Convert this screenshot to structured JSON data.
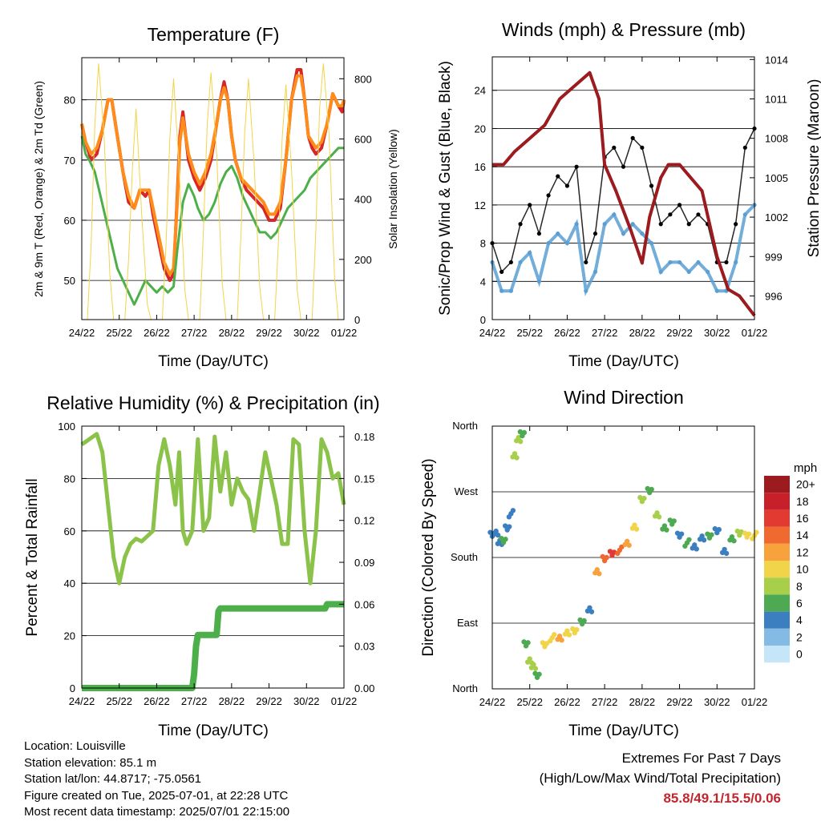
{
  "x_tick_labels": [
    "24/22",
    "25/22",
    "26/22",
    "27/22",
    "28/22",
    "29/22",
    "30/22",
    "01/22"
  ],
  "x_axis_label": "Time (Day/UTC)",
  "panels": {
    "temperature": {
      "title": "Temperature (F)",
      "ylabel_left": "2m & 9m T (Red, Orange) & 2m Td (Green)",
      "ylabel_right": "Solar Insolation (Yellow)"
    },
    "winds": {
      "title": "Winds (mph) & Pressure (mb)",
      "ylabel_left": "Sonic/Prop Wind & Gust (Blue, Black)",
      "ylabel_right": "Station Pressure (Maroon)"
    },
    "humidity": {
      "title": "Relative Humidity (%) & Precipitation (in)",
      "ylabel_left": "Percent & Total Rainfall"
    },
    "direction": {
      "title": "Wind Direction",
      "ylabel_left": "Direction (Colored By Speed)",
      "colorbar_title": "mph",
      "colorbar_labels": [
        "20+",
        "18",
        "16",
        "14",
        "12",
        "10",
        "8",
        "6",
        "4",
        "2",
        "0"
      ],
      "colorbar_colors": [
        "#9b1b1e",
        "#c8202a",
        "#e23a30",
        "#f06a30",
        "#f8a23e",
        "#f2d44a",
        "#a8cf4a",
        "#4daa52",
        "#3c7fc0",
        "#84bbe4",
        "#c5e6f8"
      ]
    }
  },
  "chart_data": [
    {
      "type": "line",
      "title": "Temperature (F)",
      "xlabel": "Time (Day/UTC)",
      "ylabel": "2m & 9m T (Red, Orange) & 2m Td (Green)",
      "ylabel_right": "Solar Insolation (Yellow)",
      "x_range": [
        0,
        7
      ],
      "ylim": [
        43.5,
        87
      ],
      "y_ticks": [
        50,
        60,
        70,
        80
      ],
      "y2lim": [
        0,
        870
      ],
      "y2_ticks": [
        0,
        200,
        400,
        600,
        800
      ],
      "series": [
        {
          "color": "#d62728",
          "x": [
            0,
            0.1,
            0.25,
            0.4,
            0.55,
            0.7,
            0.8,
            0.9,
            1.0,
            1.1,
            1.25,
            1.4,
            1.55,
            1.7,
            1.8,
            1.9,
            2.0,
            2.1,
            2.2,
            2.35,
            2.45,
            2.55,
            2.62,
            2.7,
            2.85,
            3.0,
            3.15,
            3.3,
            3.45,
            3.6,
            3.7,
            3.8,
            3.9,
            4.0,
            4.1,
            4.25,
            4.4,
            4.55,
            4.7,
            4.85,
            5.0,
            5.15,
            5.3,
            5.45,
            5.6,
            5.75,
            5.85,
            5.95,
            6.05,
            6.15,
            6.25,
            6.4,
            6.55,
            6.7,
            6.85,
            6.95,
            7.0
          ],
          "values": [
            76,
            73,
            70,
            71,
            75,
            80,
            80,
            76,
            72,
            68,
            63,
            62,
            65,
            64,
            65,
            61,
            58,
            55,
            52,
            50,
            51,
            64,
            74,
            78,
            70,
            67,
            65,
            67,
            70,
            76,
            80,
            83,
            80,
            74,
            70,
            67,
            65,
            64,
            63,
            62,
            60,
            60,
            62,
            70,
            80,
            85,
            85,
            80,
            74,
            72,
            71,
            72,
            76,
            81,
            79,
            78,
            80
          ]
        },
        {
          "color": "#ff8c1a",
          "x": [
            0,
            0.1,
            0.25,
            0.4,
            0.55,
            0.7,
            0.8,
            0.9,
            1.0,
            1.1,
            1.25,
            1.4,
            1.55,
            1.7,
            1.8,
            1.9,
            2.0,
            2.1,
            2.2,
            2.35,
            2.45,
            2.55,
            2.62,
            2.7,
            2.85,
            3.0,
            3.15,
            3.3,
            3.45,
            3.6,
            3.7,
            3.8,
            3.9,
            4.0,
            4.1,
            4.25,
            4.4,
            4.55,
            4.7,
            4.85,
            5.0,
            5.15,
            5.3,
            5.45,
            5.6,
            5.75,
            5.85,
            5.95,
            6.05,
            6.15,
            6.25,
            6.4,
            6.55,
            6.7,
            6.85,
            6.95,
            7.0
          ],
          "values": [
            76,
            73,
            71,
            72,
            75,
            80,
            80,
            76,
            72,
            68,
            64,
            62,
            65,
            65,
            65,
            62,
            59,
            56,
            53,
            51,
            52,
            63,
            73,
            77,
            71,
            68,
            66,
            68,
            71,
            76,
            80,
            82,
            80,
            74,
            70,
            67,
            66,
            65,
            64,
            63,
            61,
            61,
            63,
            70,
            80,
            84,
            84,
            80,
            74,
            73,
            72,
            73,
            76,
            81,
            79,
            79,
            80
          ]
        },
        {
          "color": "#4daf4a",
          "x": [
            0,
            0.1,
            0.2,
            0.35,
            0.5,
            0.65,
            0.8,
            0.95,
            1.1,
            1.25,
            1.4,
            1.55,
            1.7,
            1.85,
            2.0,
            2.15,
            2.3,
            2.45,
            2.55,
            2.7,
            2.85,
            3.0,
            3.1,
            3.25,
            3.4,
            3.55,
            3.7,
            3.85,
            4.0,
            4.15,
            4.3,
            4.45,
            4.6,
            4.75,
            4.9,
            5.05,
            5.2,
            5.35,
            5.5,
            5.65,
            5.8,
            5.95,
            6.1,
            6.25,
            6.4,
            6.55,
            6.7,
            6.85,
            7.0
          ],
          "values": [
            74,
            71,
            70,
            68,
            64,
            60,
            56,
            52,
            50,
            48,
            46,
            48,
            50,
            49,
            48,
            49,
            48,
            49,
            55,
            63,
            66,
            64,
            62,
            60,
            61,
            63,
            66,
            68,
            69,
            67,
            64,
            62,
            60,
            58,
            58,
            57,
            58,
            60,
            62,
            63,
            64,
            65,
            67,
            68,
            69,
            70,
            71,
            72,
            72
          ]
        },
        {
          "color": "#f2d44a",
          "x": [
            0,
            0.15,
            0.25,
            0.35,
            0.45,
            0.6,
            0.75,
            0.85,
            1.0,
            1.15,
            1.25,
            1.35,
            1.45,
            1.6,
            1.75,
            1.85,
            2.0,
            2.15,
            2.25,
            2.35,
            2.45,
            2.6,
            2.75,
            2.85,
            3.0,
            3.15,
            3.25,
            3.35,
            3.45,
            3.6,
            3.75,
            3.85,
            4.0,
            4.15,
            4.25,
            4.35,
            4.45,
            4.6,
            4.75,
            4.85,
            5.0,
            5.15,
            5.25,
            5.35,
            5.45,
            5.6,
            5.75,
            5.85,
            6.0,
            6.15,
            6.25,
            6.35,
            6.45,
            6.6,
            6.75,
            6.85,
            7.0
          ],
          "values": [
            0,
            0,
            250,
            650,
            850,
            600,
            150,
            0,
            0,
            0,
            200,
            500,
            700,
            350,
            50,
            0,
            0,
            0,
            250,
            600,
            800,
            500,
            100,
            0,
            0,
            0,
            300,
            650,
            820,
            550,
            120,
            0,
            0,
            0,
            280,
            620,
            800,
            520,
            110,
            0,
            0,
            0,
            260,
            600,
            780,
            500,
            100,
            0,
            0,
            0,
            300,
            700,
            850,
            620,
            140,
            0,
            0
          ],
          "axis": "right"
        }
      ]
    },
    {
      "type": "scatter",
      "title": "Winds (mph) & Pressure (mb)",
      "xlabel": "Time (Day/UTC)",
      "ylabel": "Sonic/Prop Wind & Gust (Blue, Black)",
      "ylabel_right": "Station Pressure (Maroon)",
      "x_range": [
        0,
        7
      ],
      "ylim": [
        0,
        27.5
      ],
      "y_ticks": [
        0,
        4,
        8,
        12,
        16,
        20,
        24
      ],
      "y2lim": [
        994.2,
        1014.2
      ],
      "y2_ticks": [
        996,
        999,
        1002,
        1005,
        1008,
        1011,
        1014
      ],
      "series": [
        {
          "name_color": "#5a9fd4",
          "x": [
            0,
            0.25,
            0.5,
            0.75,
            1.0,
            1.25,
            1.5,
            1.75,
            2.0,
            2.25,
            2.5,
            2.75,
            3.0,
            3.25,
            3.5,
            3.75,
            4.0,
            4.25,
            4.5,
            4.75,
            5.0,
            5.25,
            5.5,
            5.75,
            6.0,
            6.25,
            6.5,
            6.75,
            7.0
          ],
          "values": [
            6,
            3,
            3,
            6,
            7,
            4,
            8,
            9,
            8,
            10,
            3,
            5,
            10,
            11,
            9,
            10,
            9,
            8,
            5,
            6,
            6,
            5,
            6,
            5,
            3,
            3,
            6,
            11,
            12
          ]
        },
        {
          "name_color": "#000000",
          "x": [
            0,
            0.25,
            0.5,
            0.75,
            1.0,
            1.25,
            1.5,
            1.75,
            2.0,
            2.25,
            2.5,
            2.75,
            3.0,
            3.25,
            3.5,
            3.75,
            4.0,
            4.25,
            4.5,
            4.75,
            5.0,
            5.25,
            5.5,
            5.75,
            6.0,
            6.25,
            6.5,
            6.75,
            7.0
          ],
          "values": [
            8,
            5,
            6,
            10,
            12,
            9,
            13,
            15,
            14,
            16,
            6,
            9,
            17,
            18,
            16,
            19,
            18,
            14,
            10,
            11,
            12,
            10,
            11,
            10,
            6,
            6,
            10,
            18,
            20
          ]
        },
        {
          "name_color": "#9b1b1e",
          "axis": "right",
          "x": [
            0,
            0.3,
            0.6,
            1.0,
            1.4,
            1.8,
            2.2,
            2.6,
            2.85,
            3.0,
            3.3,
            3.7,
            4.0,
            4.2,
            4.5,
            4.7,
            5.0,
            5.3,
            5.6,
            6.0,
            6.3,
            6.6,
            7.0
          ],
          "values": [
            1006,
            1006,
            1007,
            1008,
            1009,
            1011,
            1012,
            1013,
            1011,
            1006,
            1004,
            1001,
            998.5,
            1002,
            1005,
            1006,
            1006,
            1005,
            1004,
            999,
            996.5,
            996,
            994.5
          ]
        }
      ]
    },
    {
      "type": "line",
      "title": "Relative Humidity (%) & Precipitation (in)",
      "xlabel": "Time (Day/UTC)",
      "ylabel": "Percent & Total Rainfall",
      "x_range": [
        0,
        7
      ],
      "ylim": [
        0,
        100
      ],
      "y_ticks": [
        0,
        20,
        40,
        60,
        80,
        100
      ],
      "y2lim": [
        0,
        0.1875
      ],
      "y2_ticks": [
        "0.00",
        "0.03",
        "0.06",
        "0.09",
        "0.12",
        "0.15",
        "0.18"
      ],
      "series": [
        {
          "color": "#8bc34a",
          "x": [
            0,
            0.2,
            0.4,
            0.55,
            0.7,
            0.85,
            1.0,
            1.15,
            1.3,
            1.45,
            1.6,
            1.75,
            1.9,
            2.05,
            2.2,
            2.35,
            2.5,
            2.6,
            2.7,
            2.8,
            2.95,
            3.1,
            3.25,
            3.4,
            3.55,
            3.7,
            3.85,
            4.0,
            4.15,
            4.3,
            4.45,
            4.6,
            4.75,
            4.9,
            5.05,
            5.2,
            5.35,
            5.5,
            5.65,
            5.8,
            5.95,
            6.1,
            6.25,
            6.4,
            6.55,
            6.7,
            6.85,
            7.0
          ],
          "values": [
            93,
            95,
            97,
            90,
            70,
            50,
            40,
            50,
            55,
            57,
            56,
            58,
            60,
            85,
            95,
            85,
            70,
            90,
            60,
            55,
            60,
            95,
            60,
            65,
            96,
            75,
            90,
            70,
            80,
            75,
            72,
            60,
            75,
            90,
            80,
            70,
            55,
            55,
            95,
            93,
            60,
            40,
            60,
            95,
            90,
            80,
            82,
            70
          ]
        },
        {
          "color": "#4daf4a",
          "axis": "right",
          "x": [
            0,
            1,
            2,
            2.95,
            3.0,
            3.05,
            3.1,
            3.6,
            3.65,
            3.7,
            6.5,
            6.55,
            7.0
          ],
          "values": [
            0,
            0,
            0,
            0,
            0.01,
            0.03,
            0.038,
            0.038,
            0.055,
            0.057,
            0.057,
            0.06,
            0.06
          ]
        }
      ]
    },
    {
      "type": "scatter",
      "title": "Wind Direction",
      "xlabel": "Time (Day/UTC)",
      "ylabel": "Direction (Colored By Speed)",
      "x_range": [
        0,
        7
      ],
      "ylim": [
        0,
        360
      ],
      "y_ticks": [
        "North",
        "East",
        "South",
        "West",
        "North"
      ],
      "series": [
        {
          "x": [
            0,
            0.1,
            0.2,
            0.3,
            0.4,
            0.5,
            0.6,
            0.7,
            0.8,
            0.9,
            1.0,
            1.1,
            1.2,
            1.4,
            1.6,
            1.8,
            2.0,
            2.2,
            2.4,
            2.6,
            2.8,
            3.0,
            3.2,
            3.4,
            3.6,
            3.8,
            4.0,
            4.2,
            4.4,
            4.6,
            4.8,
            5.0,
            5.2,
            5.4,
            5.6,
            5.8,
            6.0,
            6.2,
            6.4,
            6.6,
            6.8,
            7.0
          ],
          "values": [
            210,
            215,
            200,
            205,
            220,
            240,
            320,
            340,
            350,
            60,
            40,
            30,
            20,
            60,
            70,
            70,
            75,
            80,
            90,
            110,
            160,
            180,
            185,
            190,
            200,
            220,
            260,
            270,
            240,
            220,
            230,
            210,
            200,
            195,
            205,
            210,
            215,
            190,
            205,
            215,
            210,
            210
          ],
          "speeds": [
            4,
            3,
            4,
            5,
            3,
            4,
            8,
            7,
            6,
            6,
            8,
            7,
            5,
            9,
            10,
            11,
            10,
            9,
            6,
            4,
            12,
            14,
            16,
            13,
            12,
            10,
            8,
            6,
            7,
            6,
            5,
            4,
            6,
            3,
            4,
            5,
            4,
            3,
            6,
            8,
            9,
            10
          ]
        }
      ]
    }
  ],
  "footer": {
    "location": "Location: Louisville",
    "elevation": "Station elevation: 85.1 m",
    "latlon": "Station lat/lon: 44.8717; -75.0561",
    "created": "Figure created on Tue, 2025-07-01, at 22:28 UTC",
    "recent": "Most recent data timestamp: 2025/07/01 22:15:00"
  },
  "extremes": {
    "title": "Extremes For Past 7 Days",
    "subtitle": "(High/Low/Max Wind/Total Precipitation)",
    "values": "85.8/49.1/15.5/0.06"
  }
}
